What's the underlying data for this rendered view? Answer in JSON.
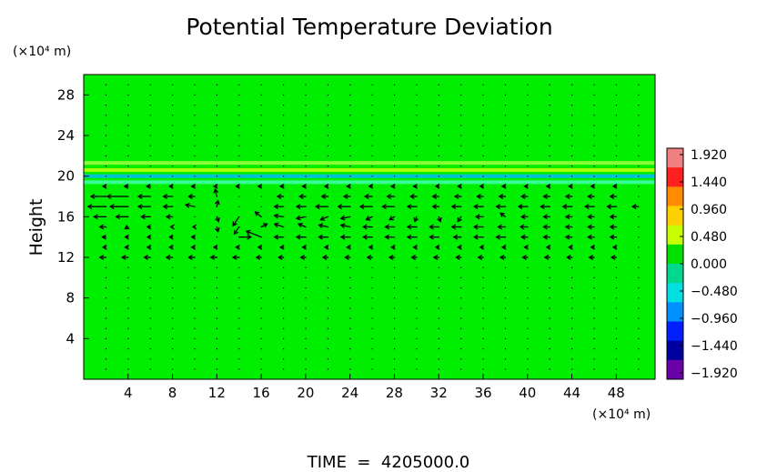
{
  "chart_data": {
    "type": "heatmap",
    "title": "Potential Temperature Deviation",
    "ylabel": "Height",
    "y_unit": "(×10⁴ m)",
    "x_unit": "(×10⁴ m)",
    "footer": "TIME  =  4205000.0",
    "xlim": [
      0,
      51.5
    ],
    "ylim": [
      0,
      30
    ],
    "x_ticks": [
      4,
      8,
      12,
      16,
      20,
      24,
      28,
      32,
      36,
      40,
      44,
      48
    ],
    "y_ticks": [
      4,
      8,
      12,
      16,
      20,
      24,
      28
    ],
    "colorbar": {
      "ticks": [
        "1.920",
        "1.440",
        "0.960",
        "0.480",
        "0.000",
        "−0.480",
        "−0.960",
        "−1.440",
        "−1.920"
      ],
      "colors": [
        "#f08080",
        "#ff2020",
        "#ff8c00",
        "#ffd000",
        "#c8ff00",
        "#00e000",
        "#00d890",
        "#00e0e0",
        "#0090ff",
        "#0020ff",
        "#0000a0",
        "#6a00a8"
      ]
    },
    "background_color": "#00ee00",
    "bands": [
      {
        "y": 20.0,
        "value": -0.7,
        "color": "#00b8ff"
      },
      {
        "y": 20.6,
        "value": 0.6,
        "color": "#c8ff00"
      },
      {
        "y": 21.3,
        "value": 0.3,
        "color": "#a0ff40"
      },
      {
        "y": 19.4,
        "value": -0.3,
        "color": "#40ffb0"
      }
    ],
    "vectors": [
      {
        "x": 2,
        "y": 18,
        "u": -2.5,
        "v": 0
      },
      {
        "x": 4,
        "y": 18,
        "u": -3.5,
        "v": 0
      },
      {
        "x": 6,
        "y": 18,
        "u": -2,
        "v": 0
      },
      {
        "x": 8,
        "y": 18,
        "u": -1.5,
        "v": 0
      },
      {
        "x": 10,
        "y": 18,
        "u": -1,
        "v": 0
      },
      {
        "x": 2,
        "y": 17,
        "u": -3,
        "v": 0
      },
      {
        "x": 4,
        "y": 17,
        "u": -3,
        "v": 0
      },
      {
        "x": 6,
        "y": 17,
        "u": -2,
        "v": 0
      },
      {
        "x": 8,
        "y": 17,
        "u": -1.5,
        "v": 0
      },
      {
        "x": 10,
        "y": 17,
        "u": -1.5,
        "v": 0.3
      },
      {
        "x": 2,
        "y": 16,
        "u": -2,
        "v": 0
      },
      {
        "x": 4,
        "y": 16,
        "u": -2,
        "v": 0
      },
      {
        "x": 6,
        "y": 16,
        "u": -1.5,
        "v": 0
      },
      {
        "x": 8,
        "y": 16,
        "u": -1,
        "v": 0
      },
      {
        "x": 12,
        "y": 18,
        "u": -0.3,
        "v": 1.2
      },
      {
        "x": 12,
        "y": 17,
        "u": 0.2,
        "v": 1
      },
      {
        "x": 12,
        "y": 16,
        "u": 0.3,
        "v": -0.8
      },
      {
        "x": 12,
        "y": 15,
        "u": 0.2,
        "v": -0.8
      },
      {
        "x": 14,
        "y": 16,
        "u": -1,
        "v": -1.5
      },
      {
        "x": 14,
        "y": 15,
        "u": -0.8,
        "v": -1.2
      },
      {
        "x": 14,
        "y": 14,
        "u": 2,
        "v": 0
      },
      {
        "x": 16,
        "y": 14,
        "u": -2.5,
        "v": 1
      },
      {
        "x": 16,
        "y": 16,
        "u": -1,
        "v": 0.8
      },
      {
        "x": 16,
        "y": 15,
        "u": 1,
        "v": 0.5
      },
      {
        "x": 18,
        "y": 17,
        "u": -1.5,
        "v": 0
      },
      {
        "x": 20,
        "y": 17,
        "u": -1.5,
        "v": 0
      },
      {
        "x": 22,
        "y": 17,
        "u": -2,
        "v": 0
      },
      {
        "x": 24,
        "y": 17,
        "u": -2,
        "v": 0
      },
      {
        "x": 26,
        "y": 17,
        "u": -2,
        "v": 0
      },
      {
        "x": 28,
        "y": 17,
        "u": -2,
        "v": 0
      },
      {
        "x": 30,
        "y": 17,
        "u": -1.5,
        "v": 0
      },
      {
        "x": 32,
        "y": 17,
        "u": -1,
        "v": 0
      },
      {
        "x": 34,
        "y": 17,
        "u": -1.5,
        "v": 0
      },
      {
        "x": 36,
        "y": 17,
        "u": -1.5,
        "v": 0
      },
      {
        "x": 38,
        "y": 17,
        "u": -1.5,
        "v": 0
      },
      {
        "x": 40,
        "y": 17,
        "u": -1.5,
        "v": 0
      },
      {
        "x": 42,
        "y": 17,
        "u": -1.5,
        "v": 0
      },
      {
        "x": 44,
        "y": 17,
        "u": -1.5,
        "v": 0
      },
      {
        "x": 46,
        "y": 17,
        "u": -1.5,
        "v": 0
      },
      {
        "x": 48,
        "y": 17,
        "u": -1.5,
        "v": 0
      },
      {
        "x": 50,
        "y": 17,
        "u": -1,
        "v": 0
      },
      {
        "x": 18,
        "y": 18,
        "u": -1,
        "v": 0
      },
      {
        "x": 20,
        "y": 18,
        "u": -1,
        "v": 0
      },
      {
        "x": 22,
        "y": 18,
        "u": -1,
        "v": 0
      },
      {
        "x": 24,
        "y": 18,
        "u": -1,
        "v": 0
      },
      {
        "x": 26,
        "y": 18,
        "u": -1.2,
        "v": 0
      },
      {
        "x": 28,
        "y": 18,
        "u": -1.2,
        "v": 0
      },
      {
        "x": 30,
        "y": 18,
        "u": -1,
        "v": 0
      },
      {
        "x": 32,
        "y": 18,
        "u": -1,
        "v": 0
      },
      {
        "x": 34,
        "y": 18,
        "u": -1,
        "v": 0
      },
      {
        "x": 36,
        "y": 18,
        "u": -1,
        "v": 0
      },
      {
        "x": 38,
        "y": 18,
        "u": -1,
        "v": 0
      },
      {
        "x": 40,
        "y": 18,
        "u": -1,
        "v": 0
      },
      {
        "x": 42,
        "y": 18,
        "u": -1,
        "v": 0
      },
      {
        "x": 44,
        "y": 18,
        "u": -1,
        "v": 0
      },
      {
        "x": 46,
        "y": 18,
        "u": -1,
        "v": 0
      },
      {
        "x": 48,
        "y": 18,
        "u": -1,
        "v": 0
      },
      {
        "x": 18,
        "y": 16,
        "u": -1.5,
        "v": 0.2
      },
      {
        "x": 20,
        "y": 16,
        "u": -1.5,
        "v": -0.3
      },
      {
        "x": 22,
        "y": 16,
        "u": -1.2,
        "v": -0.5
      },
      {
        "x": 24,
        "y": 16,
        "u": -1.5,
        "v": -0.3
      },
      {
        "x": 26,
        "y": 16,
        "u": -1,
        "v": -0.5
      },
      {
        "x": 28,
        "y": 16,
        "u": -0.8,
        "v": -0.5
      },
      {
        "x": 30,
        "y": 16,
        "u": -0.3,
        "v": -0.8
      },
      {
        "x": 32,
        "y": 16,
        "u": 0.3,
        "v": -0.8
      },
      {
        "x": 34,
        "y": 16,
        "u": -0.5,
        "v": -0.8
      },
      {
        "x": 36,
        "y": 16,
        "u": -1.2,
        "v": 0
      },
      {
        "x": 38,
        "y": 16,
        "u": -0.8,
        "v": 0.6
      },
      {
        "x": 40,
        "y": 16,
        "u": -1,
        "v": 0
      },
      {
        "x": 42,
        "y": 16,
        "u": -1,
        "v": 0
      },
      {
        "x": 44,
        "y": 16,
        "u": -1,
        "v": 0
      },
      {
        "x": 46,
        "y": 16,
        "u": -1,
        "v": 0
      },
      {
        "x": 48,
        "y": 16,
        "u": -1,
        "v": 0
      },
      {
        "x": 18,
        "y": 15,
        "u": -1.5,
        "v": 0.5
      },
      {
        "x": 20,
        "y": 15,
        "u": -1.2,
        "v": 0.5
      },
      {
        "x": 22,
        "y": 15,
        "u": -1.5,
        "v": 0.3
      },
      {
        "x": 24,
        "y": 15,
        "u": -1.5,
        "v": 0.3
      },
      {
        "x": 26,
        "y": 15,
        "u": -1.5,
        "v": 0
      },
      {
        "x": 28,
        "y": 15,
        "u": -1.5,
        "v": 0
      },
      {
        "x": 30,
        "y": 15,
        "u": -1.5,
        "v": 0
      },
      {
        "x": 32,
        "y": 15,
        "u": -1.5,
        "v": 0
      },
      {
        "x": 34,
        "y": 15,
        "u": -1.5,
        "v": 0
      },
      {
        "x": 36,
        "y": 15,
        "u": -1.5,
        "v": 0
      },
      {
        "x": 38,
        "y": 15,
        "u": -1.2,
        "v": 0
      },
      {
        "x": 40,
        "y": 15,
        "u": -1.2,
        "v": 0
      },
      {
        "x": 42,
        "y": 15,
        "u": -1,
        "v": 0
      },
      {
        "x": 44,
        "y": 15,
        "u": -1,
        "v": 0
      },
      {
        "x": 46,
        "y": 15,
        "u": -1,
        "v": 0
      },
      {
        "x": 48,
        "y": 15,
        "u": -1,
        "v": 0
      },
      {
        "x": 18,
        "y": 14,
        "u": -1.5,
        "v": 0
      },
      {
        "x": 20,
        "y": 14,
        "u": -1.5,
        "v": 0
      },
      {
        "x": 22,
        "y": 14,
        "u": -1.5,
        "v": 0
      },
      {
        "x": 24,
        "y": 14,
        "u": -1.5,
        "v": 0
      },
      {
        "x": 26,
        "y": 14,
        "u": -1.5,
        "v": 0
      },
      {
        "x": 28,
        "y": 14,
        "u": -1.5,
        "v": 0
      },
      {
        "x": 30,
        "y": 14,
        "u": -1.5,
        "v": 0
      },
      {
        "x": 32,
        "y": 14,
        "u": -1.5,
        "v": 0
      },
      {
        "x": 34,
        "y": 14,
        "u": -1.2,
        "v": 0
      },
      {
        "x": 36,
        "y": 14,
        "u": -1.5,
        "v": 0
      },
      {
        "x": 38,
        "y": 14,
        "u": -1.5,
        "v": 0
      },
      {
        "x": 40,
        "y": 14,
        "u": -1,
        "v": 0
      },
      {
        "x": 42,
        "y": 14,
        "u": -1,
        "v": 0
      },
      {
        "x": 44,
        "y": 14,
        "u": -1,
        "v": 0
      },
      {
        "x": 46,
        "y": 14,
        "u": -1,
        "v": 0
      },
      {
        "x": 48,
        "y": 14,
        "u": -1,
        "v": 0
      },
      {
        "x": 2,
        "y": 15,
        "u": -1,
        "v": 0
      },
      {
        "x": 4,
        "y": 15,
        "u": -0.5,
        "v": -0.3
      },
      {
        "x": 6,
        "y": 15,
        "u": -0.5,
        "v": 0
      },
      {
        "x": 8,
        "y": 15,
        "u": -0.3,
        "v": 0
      },
      {
        "x": 10,
        "y": 15,
        "u": -0.3,
        "v": 0
      },
      {
        "x": 2,
        "y": 14,
        "u": -0.6,
        "v": 0
      },
      {
        "x": 4,
        "y": 14,
        "u": -0.5,
        "v": 0
      },
      {
        "x": 6,
        "y": 14,
        "u": -0.5,
        "v": 0
      },
      {
        "x": 8,
        "y": 14,
        "u": -0.5,
        "v": 0
      },
      {
        "x": 10,
        "y": 14,
        "u": -0.5,
        "v": 0
      },
      {
        "x": 2,
        "y": 13,
        "u": -0.5,
        "v": 0
      },
      {
        "x": 4,
        "y": 13,
        "u": -0.5,
        "v": 0
      },
      {
        "x": 6,
        "y": 13,
        "u": -0.5,
        "v": 0
      },
      {
        "x": 8,
        "y": 13,
        "u": -0.5,
        "v": 0
      },
      {
        "x": 10,
        "y": 13,
        "u": -0.5,
        "v": 0
      },
      {
        "x": 12,
        "y": 13,
        "u": -0.5,
        "v": 0
      },
      {
        "x": 14,
        "y": 13,
        "u": -0.5,
        "v": 0
      },
      {
        "x": 16,
        "y": 13,
        "u": -0.5,
        "v": 0
      },
      {
        "x": 18,
        "y": 13,
        "u": -0.5,
        "v": 0
      },
      {
        "x": 20,
        "y": 13,
        "u": -0.5,
        "v": 0
      },
      {
        "x": 22,
        "y": 13,
        "u": -0.5,
        "v": 0
      },
      {
        "x": 24,
        "y": 13,
        "u": -0.5,
        "v": 0
      },
      {
        "x": 26,
        "y": 13,
        "u": -0.5,
        "v": 0
      },
      {
        "x": 28,
        "y": 13,
        "u": -0.5,
        "v": 0
      },
      {
        "x": 30,
        "y": 13,
        "u": -0.5,
        "v": 0
      },
      {
        "x": 32,
        "y": 13,
        "u": -0.5,
        "v": 0
      },
      {
        "x": 34,
        "y": 13,
        "u": -0.5,
        "v": 0
      },
      {
        "x": 36,
        "y": 13,
        "u": -0.5,
        "v": 0
      },
      {
        "x": 38,
        "y": 13,
        "u": -0.5,
        "v": 0
      },
      {
        "x": 40,
        "y": 13,
        "u": -0.5,
        "v": 0
      },
      {
        "x": 42,
        "y": 13,
        "u": -0.5,
        "v": 0
      },
      {
        "x": 44,
        "y": 13,
        "u": -0.5,
        "v": 0
      },
      {
        "x": 46,
        "y": 13,
        "u": -0.5,
        "v": 0
      },
      {
        "x": 48,
        "y": 13,
        "u": -0.5,
        "v": 0
      },
      {
        "x": 2,
        "y": 12,
        "u": -1,
        "v": 0
      },
      {
        "x": 4,
        "y": 12,
        "u": -1,
        "v": 0
      },
      {
        "x": 6,
        "y": 12,
        "u": -1,
        "v": 0
      },
      {
        "x": 8,
        "y": 12,
        "u": -1,
        "v": 0
      },
      {
        "x": 10,
        "y": 12,
        "u": -1,
        "v": 0
      },
      {
        "x": 12,
        "y": 12,
        "u": -1,
        "v": 0
      },
      {
        "x": 14,
        "y": 12,
        "u": -1,
        "v": 0
      },
      {
        "x": 16,
        "y": 12,
        "u": -0.8,
        "v": 0
      },
      {
        "x": 18,
        "y": 12,
        "u": -0.8,
        "v": 0
      },
      {
        "x": 20,
        "y": 12,
        "u": -0.8,
        "v": 0
      },
      {
        "x": 22,
        "y": 12,
        "u": -0.8,
        "v": 0
      },
      {
        "x": 24,
        "y": 12,
        "u": -0.8,
        "v": 0
      },
      {
        "x": 26,
        "y": 12,
        "u": -0.8,
        "v": 0
      },
      {
        "x": 28,
        "y": 12,
        "u": -0.8,
        "v": 0
      },
      {
        "x": 30,
        "y": 12,
        "u": -0.8,
        "v": 0
      },
      {
        "x": 32,
        "y": 12,
        "u": -0.8,
        "v": 0
      },
      {
        "x": 34,
        "y": 12,
        "u": -0.8,
        "v": 0
      },
      {
        "x": 36,
        "y": 12,
        "u": -0.8,
        "v": 0
      },
      {
        "x": 38,
        "y": 12,
        "u": -0.8,
        "v": 0
      },
      {
        "x": 40,
        "y": 12,
        "u": -0.8,
        "v": 0
      },
      {
        "x": 42,
        "y": 12,
        "u": -0.8,
        "v": 0
      },
      {
        "x": 44,
        "y": 12,
        "u": -0.8,
        "v": 0
      },
      {
        "x": 46,
        "y": 12,
        "u": -0.8,
        "v": 0
      },
      {
        "x": 48,
        "y": 12,
        "u": -0.8,
        "v": 0
      },
      {
        "x": 2,
        "y": 19,
        "u": -0.5,
        "v": 0
      },
      {
        "x": 4,
        "y": 19,
        "u": -0.6,
        "v": 0
      },
      {
        "x": 6,
        "y": 19,
        "u": -0.6,
        "v": 0
      },
      {
        "x": 8,
        "y": 19,
        "u": -0.5,
        "v": 0
      },
      {
        "x": 10,
        "y": 19,
        "u": -0.5,
        "v": 0
      },
      {
        "x": 12,
        "y": 19,
        "u": -0.5,
        "v": 0
      },
      {
        "x": 14,
        "y": 19,
        "u": -0.5,
        "v": 0
      },
      {
        "x": 16,
        "y": 19,
        "u": -0.5,
        "v": 0
      },
      {
        "x": 18,
        "y": 19,
        "u": -0.5,
        "v": 0
      },
      {
        "x": 20,
        "y": 19,
        "u": -0.5,
        "v": 0
      },
      {
        "x": 22,
        "y": 19,
        "u": -0.5,
        "v": 0
      },
      {
        "x": 24,
        "y": 19,
        "u": -0.5,
        "v": 0
      },
      {
        "x": 26,
        "y": 19,
        "u": -0.5,
        "v": 0
      },
      {
        "x": 28,
        "y": 19,
        "u": -0.5,
        "v": 0
      },
      {
        "x": 30,
        "y": 19,
        "u": -0.5,
        "v": 0
      },
      {
        "x": 32,
        "y": 19,
        "u": -0.5,
        "v": 0
      },
      {
        "x": 34,
        "y": 19,
        "u": -0.5,
        "v": 0
      },
      {
        "x": 36,
        "y": 19,
        "u": -0.5,
        "v": 0
      },
      {
        "x": 38,
        "y": 19,
        "u": -0.5,
        "v": 0
      },
      {
        "x": 40,
        "y": 19,
        "u": -0.5,
        "v": 0
      },
      {
        "x": 42,
        "y": 19,
        "u": -0.5,
        "v": 0
      },
      {
        "x": 44,
        "y": 19,
        "u": -0.5,
        "v": 0
      },
      {
        "x": 46,
        "y": 19,
        "u": -0.5,
        "v": 0
      },
      {
        "x": 48,
        "y": 19,
        "u": -0.5,
        "v": 0
      }
    ]
  }
}
